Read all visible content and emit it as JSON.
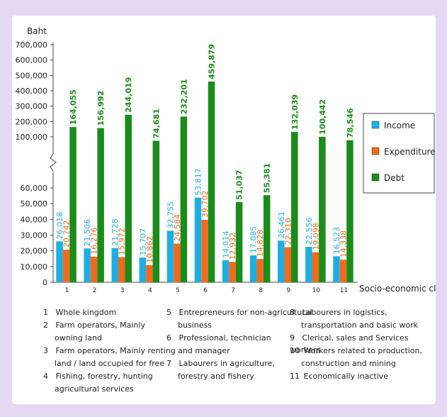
{
  "chart_data": {
    "type": "bar",
    "ylabel": "Baht",
    "xlabel": "Socio-economic class",
    "categories": [
      "1",
      "2",
      "3",
      "4",
      "5",
      "6",
      "7",
      "8",
      "9",
      "10",
      "11"
    ],
    "y_ticks_lower": [
      "0",
      "10,000",
      "20,000",
      "30,000",
      "40,000",
      "50,000",
      "60,000"
    ],
    "y_ticks_upper": [
      "100,000",
      "200,000",
      "300,000",
      "400,000",
      "500,000",
      "600,000",
      "700,000"
    ],
    "axis_break": true,
    "lower_ylim": [
      0,
      60000
    ],
    "upper_ylim": [
      100000,
      700000
    ],
    "legend_position": "right",
    "series": [
      {
        "name": "Income",
        "color": "#1eaee3",
        "values": [
          26018,
          21506,
          21728,
          15707,
          32755,
          53817,
          14014,
          17085,
          26461,
          22556,
          16523
        ],
        "labels": [
          "26,018",
          "21,506",
          "21,728",
          "15,707",
          "32,755",
          "53,817",
          "14,014",
          "17,085",
          "26,461",
          "22,556",
          "16,523"
        ]
      },
      {
        "name": "Expenditure",
        "color": "#f26a1b",
        "values": [
          20742,
          16276,
          15972,
          10862,
          24584,
          39702,
          12932,
          14828,
          22310,
          19098,
          14338
        ],
        "labels": [
          "20,742",
          "16,276",
          "15,972",
          "10,862",
          "24,584",
          "39,702",
          "12,932",
          "14,828",
          "22,310",
          "19,098",
          "14,338"
        ]
      },
      {
        "name": "Debt",
        "color": "#1a8c1a",
        "values": [
          164055,
          156992,
          244019,
          74681,
          232201,
          459879,
          51037,
          55381,
          132039,
          100442,
          78546
        ],
        "labels": [
          "164,055",
          "156,992",
          "244,019",
          "74,681",
          "232,201",
          "459,879",
          "51,037",
          "55,381",
          "132,039",
          "100,442",
          "78,546"
        ]
      }
    ]
  },
  "notes": [
    [
      "1",
      "Whole kingdom"
    ],
    [
      "2",
      "Farm operators, Mainly"
    ],
    [
      "",
      "owning land"
    ],
    [
      "3",
      "Farm operators, Mainly renting"
    ],
    [
      "",
      "land / land occupied for free"
    ],
    [
      "4",
      "Fishing, forestry, hunting"
    ],
    [
      "",
      "agricultural services"
    ],
    [
      "5",
      "Entrepreneurs for non-agricultural"
    ],
    [
      "",
      "business"
    ],
    [
      "6",
      "Professional, technician"
    ],
    [
      "",
      "and manager"
    ],
    [
      "7",
      "Labourers in agriculture,"
    ],
    [
      "",
      "forestry and fishery"
    ],
    [
      "8",
      "Labourers in logistics,"
    ],
    [
      "",
      "transportation and basic work"
    ],
    [
      "9",
      "Clerical, sales and Services workers"
    ],
    [
      "10",
      "Workers related to production,"
    ],
    [
      "",
      "construction and mining"
    ],
    [
      "11",
      "Economically inactive"
    ]
  ]
}
